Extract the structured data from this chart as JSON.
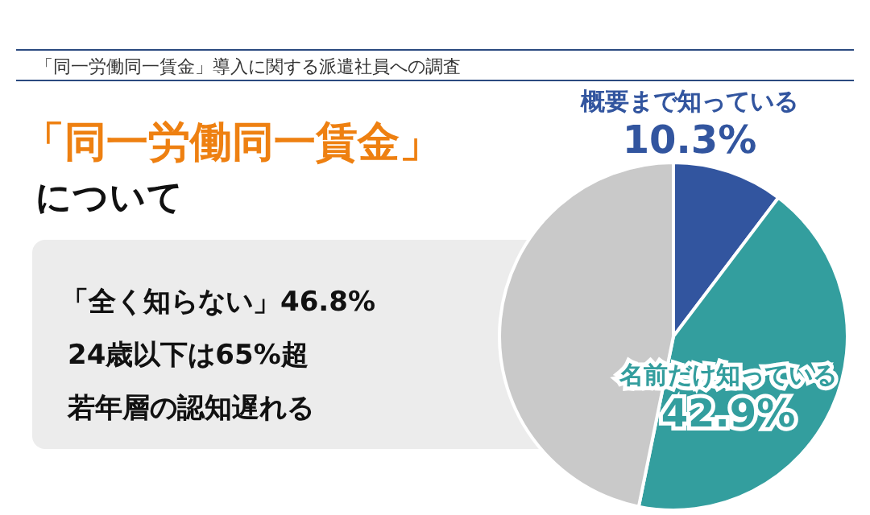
{
  "chart_data": {
    "type": "pie",
    "title": "「同一労働同一賃金」について",
    "subtitle": "「同一労働同一賃金」導入に関する派遣社員への調査",
    "categories": [
      "概要まで知っている",
      "名前だけ知っている",
      null
    ],
    "values": [
      10.3,
      42.9,
      46.8
    ],
    "colors": [
      "#32559f",
      "#339e9e",
      "#c9c9c9"
    ],
    "value_labels": [
      "10.3%",
      "42.9%",
      null
    ],
    "annotations": [
      "「全く知らない」46.8%",
      "24歳以下は65%超",
      "若年層の認知遅れる"
    ]
  }
}
